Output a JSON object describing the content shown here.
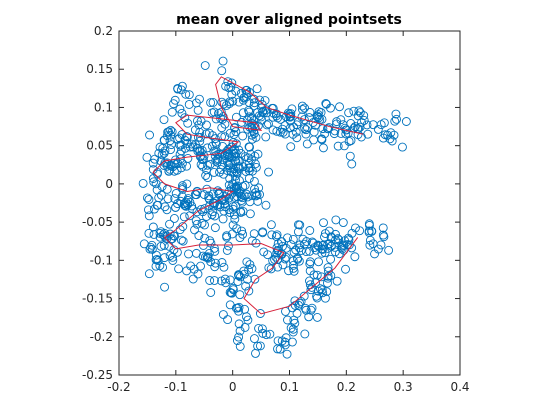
{
  "chart_data": {
    "type": "scatter",
    "title": "mean over aligned pointsets",
    "xlabel": "",
    "ylabel": "",
    "xlim": [
      -0.2,
      0.4
    ],
    "ylim": [
      -0.25,
      0.2
    ],
    "xticks": [
      -0.2,
      -0.1,
      0,
      0.1,
      0.2,
      0.3,
      0.4
    ],
    "xtick_labels": [
      "-0.2",
      "-0.1",
      "0",
      "0.1",
      "0.2",
      "0.3",
      "0.4"
    ],
    "yticks": [
      -0.25,
      -0.2,
      -0.15,
      -0.1,
      -0.05,
      0,
      0.05,
      0.1,
      0.15,
      0.2
    ],
    "ytick_labels": [
      "-0.25",
      "-0.2",
      "-0.15",
      "-0.1",
      "-0.05",
      "0",
      "0.05",
      "0.1",
      "0.15",
      "0.2"
    ],
    "grid": false,
    "marker": "circle-open",
    "colors": {
      "points": "#0072BD",
      "mean": "#D6213A"
    },
    "series": [
      {
        "type": "scatter",
        "clusters": [
          {
            "path": [
              [
                -0.02,
                0.15
              ],
              [
                0.02,
                0.11
              ],
              [
                0.08,
                0.08
              ],
              [
                0.16,
                0.09
              ],
              [
                0.22,
                0.08
              ],
              [
                0.29,
                0.07
              ]
            ],
            "spread": 0.012,
            "count": 120
          },
          {
            "path": [
              [
                -0.1,
                0.12
              ],
              [
                -0.06,
                0.09
              ],
              [
                0.02,
                0.08
              ],
              [
                0.06,
                0.07
              ],
              [
                0.14,
                0.07
              ],
              [
                0.21,
                0.055
              ]
            ],
            "spread": 0.013,
            "count": 110
          },
          {
            "path": [
              [
                -0.14,
                0.04
              ],
              [
                -0.1,
                0.07
              ],
              [
                -0.04,
                0.04
              ],
              [
                0.02,
                0.035
              ]
            ],
            "spread": 0.012,
            "count": 70
          },
          {
            "path": [
              [
                -0.15,
                0.0
              ],
              [
                -0.12,
                0.03
              ],
              [
                -0.04,
                0.03
              ],
              [
                0.0,
                0.03
              ],
              [
                0.05,
                0.02
              ]
            ],
            "spread": 0.013,
            "count": 90
          },
          {
            "path": [
              [
                -0.15,
                -0.02
              ],
              [
                -0.1,
                -0.02
              ],
              [
                -0.02,
                -0.02
              ],
              [
                0.05,
                -0.015
              ]
            ],
            "spread": 0.012,
            "count": 80
          },
          {
            "path": [
              [
                -0.14,
                -0.08
              ],
              [
                -0.1,
                -0.05
              ],
              [
                -0.04,
                -0.03
              ],
              [
                0.0,
                -0.02
              ]
            ],
            "spread": 0.013,
            "count": 60
          },
          {
            "path": [
              [
                -0.14,
                -0.1
              ],
              [
                -0.1,
                -0.09
              ],
              [
                -0.04,
                -0.085
              ],
              [
                0.02,
                -0.07
              ],
              [
                0.08,
                -0.08
              ],
              [
                0.14,
                -0.08
              ],
              [
                0.22,
                -0.07
              ],
              [
                0.28,
                -0.085
              ]
            ],
            "spread": 0.012,
            "count": 120
          },
          {
            "path": [
              [
                -0.06,
                -0.11
              ],
              [
                0.0,
                -0.13
              ],
              [
                0.06,
                -0.1
              ],
              [
                0.1,
                -0.09
              ],
              [
                0.16,
                -0.1
              ],
              [
                0.22,
                -0.065
              ]
            ],
            "spread": 0.012,
            "count": 90
          },
          {
            "path": [
              [
                0.0,
                -0.15
              ],
              [
                0.02,
                -0.19
              ],
              [
                0.06,
                -0.2
              ],
              [
                0.09,
                -0.21
              ],
              [
                0.12,
                -0.16
              ],
              [
                0.18,
                -0.12
              ]
            ],
            "spread": 0.012,
            "count": 80
          },
          {
            "path": [
              [
                -0.02,
                0.05
              ],
              [
                0.02,
                0.0
              ],
              [
                0.0,
                -0.05
              ]
            ],
            "spread": 0.012,
            "count": 40
          }
        ]
      },
      {
        "type": "line",
        "points": [
          [
            0.23,
            0.065
          ],
          [
            0.17,
            0.075
          ],
          [
            0.1,
            0.09
          ],
          [
            0.06,
            0.1
          ],
          [
            0.03,
            0.12
          ],
          [
            -0.02,
            0.14
          ],
          [
            -0.03,
            0.13
          ],
          [
            -0.02,
            0.1
          ],
          [
            0.0,
            0.075
          ],
          [
            0.05,
            0.07
          ],
          [
            0.04,
            0.08
          ],
          [
            -0.02,
            0.085
          ],
          [
            -0.08,
            0.09
          ],
          [
            -0.1,
            0.08
          ],
          [
            -0.08,
            0.065
          ],
          [
            -0.04,
            0.06
          ],
          [
            0.01,
            0.055
          ],
          [
            -0.02,
            0.04
          ],
          [
            -0.08,
            0.035
          ],
          [
            -0.12,
            0.03
          ],
          [
            -0.14,
            0.015
          ],
          [
            -0.12,
            0.0
          ],
          [
            -0.08,
            -0.01
          ],
          [
            -0.04,
            -0.005
          ],
          [
            0.0,
            -0.01
          ],
          [
            -0.02,
            -0.02
          ],
          [
            -0.06,
            -0.035
          ],
          [
            -0.1,
            -0.06
          ],
          [
            -0.12,
            -0.07
          ],
          [
            -0.1,
            -0.085
          ],
          [
            -0.06,
            -0.08
          ],
          [
            0.0,
            -0.08
          ],
          [
            0.05,
            -0.078
          ],
          [
            0.09,
            -0.09
          ],
          [
            0.07,
            -0.11
          ],
          [
            0.04,
            -0.125
          ],
          [
            0.02,
            -0.15
          ],
          [
            0.05,
            -0.17
          ],
          [
            0.1,
            -0.16
          ],
          [
            0.14,
            -0.135
          ],
          [
            0.18,
            -0.11
          ],
          [
            0.21,
            -0.08
          ],
          [
            0.22,
            -0.07
          ]
        ]
      }
    ]
  }
}
